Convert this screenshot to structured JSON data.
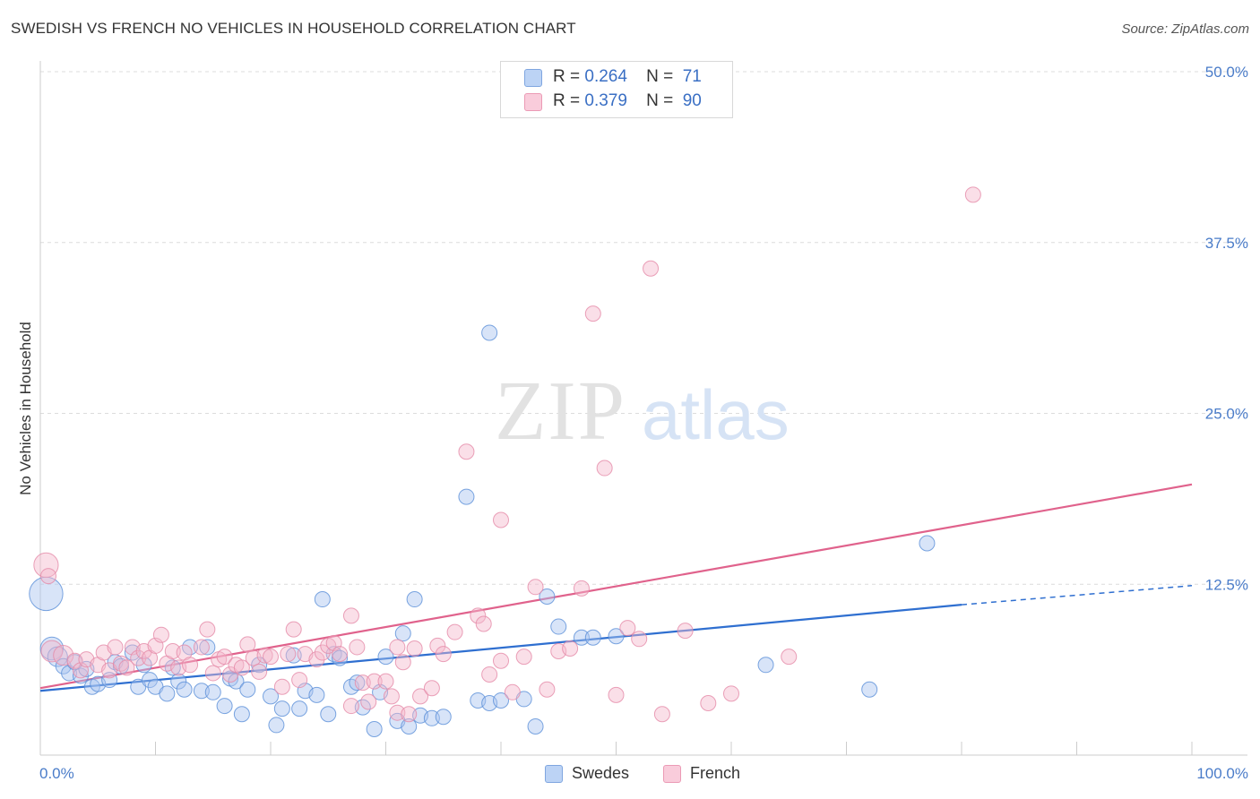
{
  "title": "SWEDISH VS FRENCH NO VEHICLES IN HOUSEHOLD CORRELATION CHART",
  "source": "Source: ZipAtlas.com",
  "watermark": {
    "zip": "ZIP",
    "atlas": "atlas"
  },
  "legend": {
    "rows": [
      {
        "r_label": "R =",
        "r_value": "0.264",
        "n_label": "N =",
        "n_value": "71",
        "color": "#a8c4f0"
      },
      {
        "r_label": "R =",
        "r_value": "0.379",
        "n_label": "N =",
        "n_value": "90",
        "color": "#f5b8cc"
      }
    ]
  },
  "bottom_legend": [
    {
      "label": "Swedes",
      "color": "#a8c4f0"
    },
    {
      "label": "French",
      "color": "#f5b8cc"
    }
  ],
  "chart_data": {
    "type": "scatter",
    "title": "SWEDISH VS FRENCH NO VEHICLES IN HOUSEHOLD CORRELATION CHART",
    "xlabel": "",
    "ylabel": "No Vehicles in Household",
    "xlim": [
      0,
      100
    ],
    "ylim": [
      0,
      50
    ],
    "x_tick_labels": [
      "0.0%",
      "100.0%"
    ],
    "y_tick_labels": [
      "12.5%",
      "25.0%",
      "37.5%",
      "50.0%"
    ],
    "y_ticks": [
      12.5,
      25.0,
      37.5,
      50.0
    ],
    "grid": true,
    "legend_position": "top-center",
    "series": [
      {
        "name": "Swedes",
        "color": "#a8c4f0",
        "stroke": "#5a8fd8",
        "trend": {
          "x": [
            0,
            80
          ],
          "y": [
            4.7,
            11.0
          ],
          "dashed_to": [
            100,
            12.4
          ],
          "color": "#2f6fd0"
        },
        "points": [
          {
            "x": 0.5,
            "y": 11.8,
            "s": 2.2
          },
          {
            "x": 1,
            "y": 7.8,
            "s": 1.5
          },
          {
            "x": 1.5,
            "y": 7.2,
            "s": 1.3
          },
          {
            "x": 2,
            "y": 6.5
          },
          {
            "x": 2.5,
            "y": 6.0
          },
          {
            "x": 3,
            "y": 6.8
          },
          {
            "x": 3.5,
            "y": 5.8
          },
          {
            "x": 4,
            "y": 6.3
          },
          {
            "x": 4.5,
            "y": 5.0
          },
          {
            "x": 5,
            "y": 5.2
          },
          {
            "x": 6,
            "y": 5.5
          },
          {
            "x": 6.5,
            "y": 6.8
          },
          {
            "x": 7,
            "y": 6.5
          },
          {
            "x": 8,
            "y": 7.5
          },
          {
            "x": 8.5,
            "y": 5.0
          },
          {
            "x": 9,
            "y": 6.6
          },
          {
            "x": 9.5,
            "y": 5.5
          },
          {
            "x": 10,
            "y": 5.0
          },
          {
            "x": 11,
            "y": 4.5
          },
          {
            "x": 11.5,
            "y": 6.4
          },
          {
            "x": 12,
            "y": 5.4
          },
          {
            "x": 12.5,
            "y": 4.8
          },
          {
            "x": 13,
            "y": 7.9
          },
          {
            "x": 14,
            "y": 4.7
          },
          {
            "x": 14.5,
            "y": 7.9
          },
          {
            "x": 15,
            "y": 4.6
          },
          {
            "x": 16,
            "y": 3.6
          },
          {
            "x": 16.5,
            "y": 5.6
          },
          {
            "x": 17,
            "y": 5.4
          },
          {
            "x": 17.5,
            "y": 3.0
          },
          {
            "x": 18,
            "y": 4.8
          },
          {
            "x": 19,
            "y": 6.6
          },
          {
            "x": 20,
            "y": 4.3
          },
          {
            "x": 20.5,
            "y": 2.2
          },
          {
            "x": 21,
            "y": 3.4
          },
          {
            "x": 22,
            "y": 7.3
          },
          {
            "x": 22.5,
            "y": 3.4
          },
          {
            "x": 23,
            "y": 4.7
          },
          {
            "x": 24,
            "y": 4.4
          },
          {
            "x": 24.5,
            "y": 11.4
          },
          {
            "x": 25,
            "y": 3.0
          },
          {
            "x": 25.5,
            "y": 7.4
          },
          {
            "x": 26,
            "y": 7.1
          },
          {
            "x": 27,
            "y": 5.0
          },
          {
            "x": 27.5,
            "y": 5.3
          },
          {
            "x": 28,
            "y": 3.5
          },
          {
            "x": 29,
            "y": 1.9
          },
          {
            "x": 29.5,
            "y": 4.6
          },
          {
            "x": 30,
            "y": 7.2
          },
          {
            "x": 31,
            "y": 2.5
          },
          {
            "x": 31.5,
            "y": 8.9
          },
          {
            "x": 32,
            "y": 2.1
          },
          {
            "x": 32.5,
            "y": 11.4
          },
          {
            "x": 33,
            "y": 2.9
          },
          {
            "x": 34,
            "y": 2.7
          },
          {
            "x": 35,
            "y": 2.8
          },
          {
            "x": 37,
            "y": 18.9
          },
          {
            "x": 38,
            "y": 4.0
          },
          {
            "x": 39,
            "y": 3.8
          },
          {
            "x": 40,
            "y": 4.0
          },
          {
            "x": 42,
            "y": 4.1
          },
          {
            "x": 43,
            "y": 2.1
          },
          {
            "x": 44,
            "y": 11.6
          },
          {
            "x": 45,
            "y": 9.4
          },
          {
            "x": 47,
            "y": 8.6
          },
          {
            "x": 48,
            "y": 8.6
          },
          {
            "x": 39,
            "y": 30.9
          },
          {
            "x": 50,
            "y": 8.7
          },
          {
            "x": 63,
            "y": 6.6
          },
          {
            "x": 72,
            "y": 4.8
          },
          {
            "x": 77,
            "y": 15.5
          }
        ]
      },
      {
        "name": "French",
        "color": "#f5b8cc",
        "stroke": "#e58aa8",
        "trend": {
          "x": [
            0,
            100
          ],
          "y": [
            4.9,
            19.8
          ],
          "color": "#e0628c"
        },
        "points": [
          {
            "x": 0.5,
            "y": 13.9,
            "s": 1.6
          },
          {
            "x": 0.7,
            "y": 13.1
          },
          {
            "x": 1,
            "y": 7.6,
            "s": 1.4
          },
          {
            "x": 2,
            "y": 7.3,
            "s": 1.3
          },
          {
            "x": 3,
            "y": 6.9
          },
          {
            "x": 3.5,
            "y": 6.2
          },
          {
            "x": 4,
            "y": 7.0
          },
          {
            "x": 5,
            "y": 6.6
          },
          {
            "x": 5.5,
            "y": 7.5
          },
          {
            "x": 6,
            "y": 6.2
          },
          {
            "x": 6.5,
            "y": 7.9
          },
          {
            "x": 7,
            "y": 6.7
          },
          {
            "x": 7.5,
            "y": 6.4
          },
          {
            "x": 8,
            "y": 7.9
          },
          {
            "x": 8.5,
            "y": 7.1
          },
          {
            "x": 9,
            "y": 7.6
          },
          {
            "x": 9.5,
            "y": 7.1
          },
          {
            "x": 10,
            "y": 8.0
          },
          {
            "x": 10.5,
            "y": 8.8
          },
          {
            "x": 11,
            "y": 6.7
          },
          {
            "x": 11.5,
            "y": 7.6
          },
          {
            "x": 12,
            "y": 6.4
          },
          {
            "x": 12.5,
            "y": 7.5
          },
          {
            "x": 13,
            "y": 6.6
          },
          {
            "x": 14,
            "y": 7.9
          },
          {
            "x": 14.5,
            "y": 9.2
          },
          {
            "x": 15,
            "y": 6.0
          },
          {
            "x": 15.5,
            "y": 7.0
          },
          {
            "x": 16,
            "y": 7.2
          },
          {
            "x": 16.5,
            "y": 5.9
          },
          {
            "x": 17,
            "y": 6.6
          },
          {
            "x": 17.5,
            "y": 6.4
          },
          {
            "x": 18,
            "y": 8.1
          },
          {
            "x": 18.5,
            "y": 7.1
          },
          {
            "x": 19,
            "y": 6.1
          },
          {
            "x": 19.5,
            "y": 7.3
          },
          {
            "x": 20,
            "y": 7.2
          },
          {
            "x": 21,
            "y": 5.0
          },
          {
            "x": 21.5,
            "y": 7.4
          },
          {
            "x": 22,
            "y": 9.2
          },
          {
            "x": 22.5,
            "y": 5.5
          },
          {
            "x": 23,
            "y": 7.4
          },
          {
            "x": 24,
            "y": 7.0
          },
          {
            "x": 24.5,
            "y": 7.5
          },
          {
            "x": 25,
            "y": 8.0
          },
          {
            "x": 25.5,
            "y": 8.2
          },
          {
            "x": 26,
            "y": 7.4
          },
          {
            "x": 27,
            "y": 3.6
          },
          {
            "x": 27.5,
            "y": 7.9
          },
          {
            "x": 28,
            "y": 5.3
          },
          {
            "x": 28.5,
            "y": 3.9
          },
          {
            "x": 29,
            "y": 5.4
          },
          {
            "x": 30,
            "y": 5.4
          },
          {
            "x": 30.5,
            "y": 4.3
          },
          {
            "x": 31,
            "y": 3.1
          },
          {
            "x": 31.5,
            "y": 6.8
          },
          {
            "x": 32,
            "y": 3.0
          },
          {
            "x": 32.5,
            "y": 7.8
          },
          {
            "x": 33,
            "y": 4.3
          },
          {
            "x": 34,
            "y": 4.9
          },
          {
            "x": 34.5,
            "y": 8.0
          },
          {
            "x": 35,
            "y": 7.4
          },
          {
            "x": 36,
            "y": 9.0
          },
          {
            "x": 37,
            "y": 22.2
          },
          {
            "x": 38,
            "y": 10.2
          },
          {
            "x": 38.5,
            "y": 9.6
          },
          {
            "x": 39,
            "y": 5.9
          },
          {
            "x": 40,
            "y": 17.2
          },
          {
            "x": 41,
            "y": 4.6
          },
          {
            "x": 42,
            "y": 7.2
          },
          {
            "x": 43,
            "y": 12.3
          },
          {
            "x": 44,
            "y": 4.8
          },
          {
            "x": 45,
            "y": 7.6
          },
          {
            "x": 46,
            "y": 7.8
          },
          {
            "x": 47,
            "y": 12.2
          },
          {
            "x": 48,
            "y": 32.3
          },
          {
            "x": 49,
            "y": 21.0
          },
          {
            "x": 50,
            "y": 4.4
          },
          {
            "x": 51,
            "y": 9.3
          },
          {
            "x": 52,
            "y": 8.5
          },
          {
            "x": 53,
            "y": 35.6
          },
          {
            "x": 54,
            "y": 3.0
          },
          {
            "x": 56,
            "y": 9.1
          },
          {
            "x": 58,
            "y": 3.8
          },
          {
            "x": 60,
            "y": 4.5
          },
          {
            "x": 40,
            "y": 6.9
          },
          {
            "x": 27,
            "y": 10.2
          },
          {
            "x": 31,
            "y": 7.9
          },
          {
            "x": 65,
            "y": 7.2
          },
          {
            "x": 81,
            "y": 41.0
          }
        ]
      }
    ]
  }
}
